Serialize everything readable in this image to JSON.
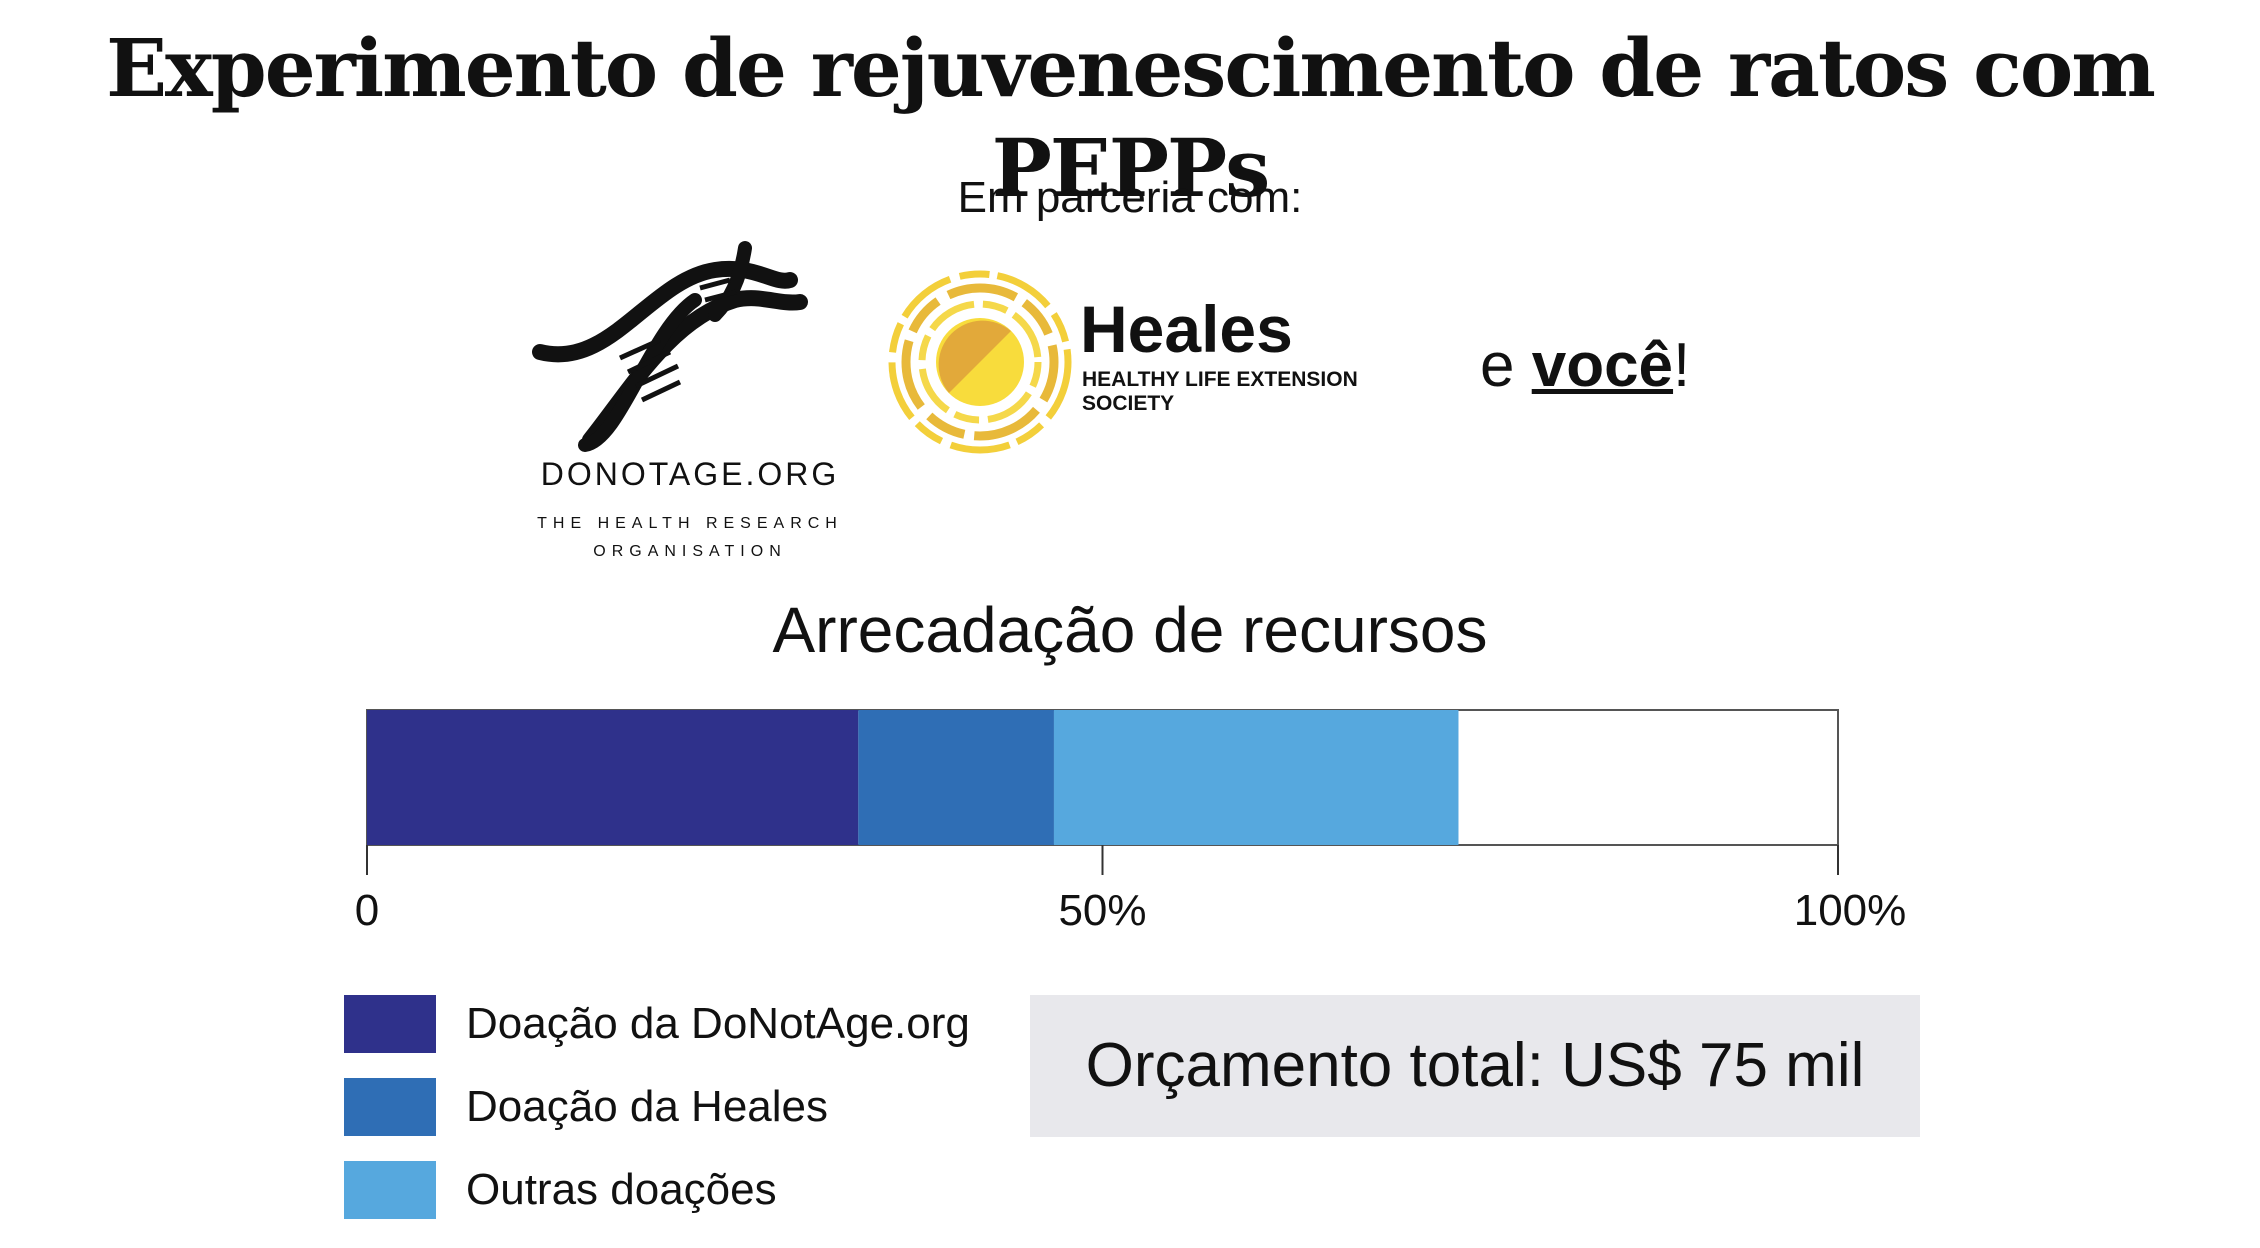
{
  "title": "Experimento de rejuvenescimento de ratos com PEPPs",
  "partners": {
    "label": "Em parceria com:",
    "donotage": {
      "name": "DONOTAGE.ORG",
      "tagline_1": "THE HEALTH RESEARCH",
      "tagline_2": "ORGANISATION"
    },
    "heales": {
      "name": "Heales",
      "tagline_1": "HEALTHY LIFE EXTENSION",
      "tagline_2": "SOCIETY"
    },
    "and_you": {
      "prefix": "e ",
      "you": "você",
      "suffix": "!"
    }
  },
  "chart_data": {
    "type": "bar",
    "orientation": "horizontal-stacked",
    "title": "Arrecadação de recursos",
    "xlim": [
      0,
      100
    ],
    "ticks": [
      {
        "value": 0,
        "label": "0"
      },
      {
        "value": 50,
        "label": "50%"
      },
      {
        "value": 100,
        "label": "100%"
      }
    ],
    "series": [
      {
        "name": "Doação da DoNotAge.org",
        "value": 33.4,
        "color": "#2f318b"
      },
      {
        "name": "Doação da Heales",
        "value": 13.3,
        "color": "#2f6eb5"
      },
      {
        "name": "Outras doações",
        "value": 27.5,
        "color": "#56a8de"
      }
    ]
  },
  "budget": {
    "text": "Orçamento total: US$ 75 mil"
  },
  "colors": {
    "remaining": "#ffffff",
    "budget_bg": "#e8e8ec"
  }
}
